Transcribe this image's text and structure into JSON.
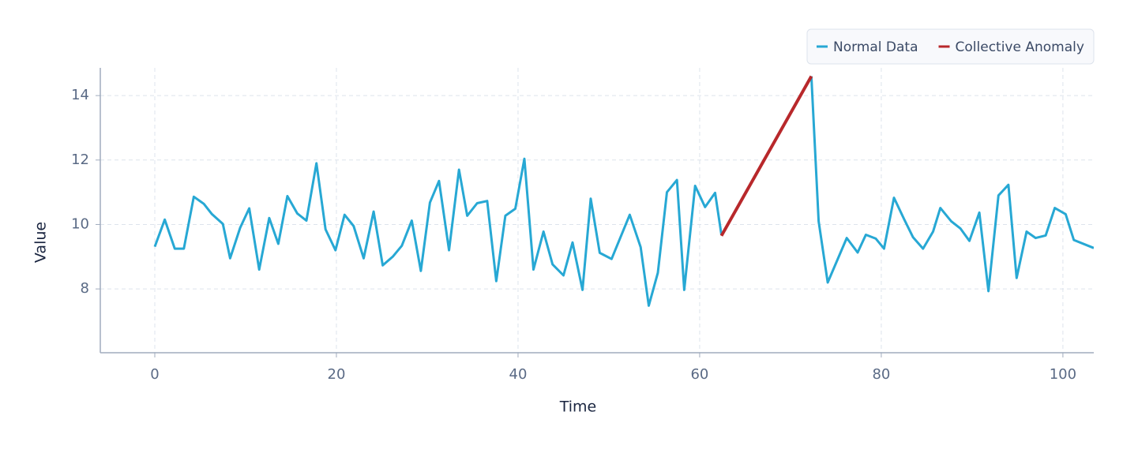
{
  "chart_data": {
    "type": "line",
    "xlabel": "Time",
    "ylabel": "Value",
    "xlim": [
      -6,
      103.4
    ],
    "ylim": [
      6.02,
      14.86
    ],
    "xticks": [
      0,
      20,
      40,
      60,
      80,
      100
    ],
    "yticks": [
      8,
      10,
      12,
      14
    ],
    "grid": true,
    "legend": "upper right",
    "series": [
      {
        "name": "Normal Data",
        "color": "#27a8d4",
        "x": [
          0,
          1.1,
          2.2,
          3.2,
          4.3,
          5.4,
          6.3,
          7.5,
          8.3,
          9.4,
          10.4,
          11.5,
          12.6,
          13.6,
          14.6,
          15.7,
          16.7,
          17.8,
          18.8,
          19.9,
          20.9,
          21.9,
          23.0,
          24.1,
          25.1,
          26.2,
          27.2,
          28.3,
          29.3,
          30.3,
          31.3,
          32.4,
          33.5,
          34.4,
          35.5,
          36.6,
          37.6,
          38.6,
          39.7,
          40.7,
          41.7,
          42.8,
          43.8,
          45.0,
          46.0,
          47.1,
          48.0,
          49.0,
          50.3,
          52.3,
          53.5,
          54.4,
          55.4,
          56.4,
          57.5,
          58.3,
          59.5,
          60.6,
          61.7,
          62.4,
          null,
          72.3,
          73.1,
          74.1,
          76.2,
          77.4,
          78.3,
          79.4,
          80.3,
          81.4,
          82.5,
          83.5,
          84.6,
          85.7,
          86.5,
          87.7,
          88.7,
          89.7,
          90.8,
          91.8,
          92.9,
          94.0,
          94.9,
          96.0,
          97.0,
          98.1,
          99.1,
          100.3,
          101.2,
          103.4
        ],
        "values": [
          9.31,
          10.15,
          9.25,
          9.25,
          10.86,
          10.64,
          10.32,
          10.02,
          8.95,
          9.9,
          10.5,
          8.6,
          10.2,
          9.4,
          10.88,
          10.34,
          10.12,
          11.9,
          9.85,
          9.2,
          10.3,
          9.95,
          8.95,
          10.4,
          8.73,
          9.0,
          9.34,
          10.12,
          8.56,
          10.68,
          11.35,
          9.2,
          11.7,
          10.27,
          10.66,
          10.73,
          8.24,
          10.27,
          10.49,
          12.04,
          8.6,
          9.78,
          8.76,
          8.42,
          9.44,
          7.97,
          10.8,
          9.12,
          8.93,
          10.3,
          9.3,
          7.48,
          8.5,
          11.0,
          11.38,
          7.97,
          11.2,
          10.54,
          10.98,
          9.68,
          null,
          14.6,
          10.1,
          8.2,
          9.58,
          9.13,
          9.68,
          9.56,
          9.25,
          10.83,
          10.17,
          9.6,
          9.25,
          9.78,
          10.51,
          10.1,
          9.88,
          9.49,
          10.37,
          7.93,
          10.9,
          11.23,
          8.34,
          9.78,
          9.58,
          9.66,
          10.51,
          10.32,
          9.52,
          9.27
        ]
      },
      {
        "name": "Collective Anomaly",
        "color": "#b8282b",
        "x": [
          62.4,
          72.3
        ],
        "values": [
          9.65,
          14.6
        ]
      }
    ]
  }
}
